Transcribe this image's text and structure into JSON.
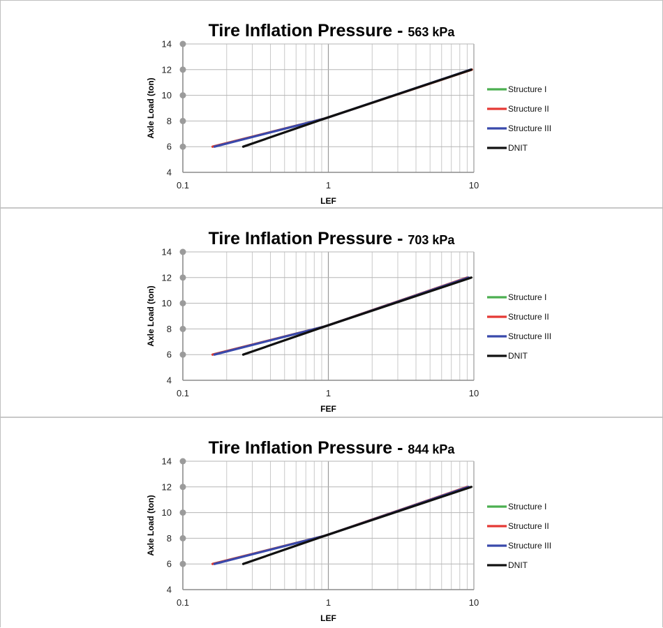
{
  "chart_data": [
    {
      "type": "line",
      "title_main": "Tire Inflation Pressure - ",
      "title_value": "563 kPa",
      "xlabel": "LEF",
      "ylabel": "Axle Load (ton)",
      "xscale": "log",
      "xlim": [
        0.1,
        10
      ],
      "ylim": [
        4,
        14
      ],
      "xticks": [
        "0.1",
        "1",
        "10"
      ],
      "yticks": [
        "4",
        "6",
        "8",
        "10",
        "12",
        "14"
      ],
      "grid": true,
      "legend_position": "right",
      "series": [
        {
          "name": "Structure I",
          "color": "#4caf50",
          "x": [
            0.16,
            0.95,
            9.7
          ],
          "y": [
            6,
            8.2,
            12
          ]
        },
        {
          "name": "Structure II",
          "color": "#e53935",
          "x": [
            0.16,
            0.95,
            9.7
          ],
          "y": [
            6,
            8.2,
            12
          ]
        },
        {
          "name": "Structure III",
          "color": "#3949ab",
          "x": [
            0.165,
            0.95,
            9.5
          ],
          "y": [
            6,
            8.2,
            12
          ]
        },
        {
          "name": "DNIT",
          "color": "#111111",
          "x": [
            0.26,
            0.95,
            9.6
          ],
          "y": [
            6,
            8.2,
            12
          ]
        }
      ]
    },
    {
      "type": "line",
      "title_main": "Tire Inflation Pressure - ",
      "title_value": "703 kPa",
      "xlabel": "FEF",
      "ylabel": "Axle Load (ton)",
      "xscale": "log",
      "xlim": [
        0.1,
        10
      ],
      "ylim": [
        4,
        14
      ],
      "xticks": [
        "0.1",
        "1",
        "10"
      ],
      "yticks": [
        "4",
        "6",
        "8",
        "10",
        "12",
        "14"
      ],
      "grid": true,
      "legend_position": "right",
      "series": [
        {
          "name": "Structure I",
          "color": "#4caf50",
          "x": [
            0.16,
            0.95,
            9.0
          ],
          "y": [
            6,
            8.2,
            12
          ]
        },
        {
          "name": "Structure II",
          "color": "#e53935",
          "x": [
            0.16,
            0.95,
            9.0
          ],
          "y": [
            6,
            8.2,
            12
          ]
        },
        {
          "name": "Structure III",
          "color": "#3949ab",
          "x": [
            0.165,
            0.95,
            9.2
          ],
          "y": [
            6,
            8.2,
            12
          ]
        },
        {
          "name": "DNIT",
          "color": "#111111",
          "x": [
            0.26,
            0.95,
            9.6
          ],
          "y": [
            6,
            8.2,
            12
          ]
        }
      ]
    },
    {
      "type": "line",
      "title_main": "Tire Inflation Pressure - ",
      "title_value": "844 kPa",
      "xlabel": "LEF",
      "ylabel": "Axle Load (ton)",
      "xscale": "log",
      "xlim": [
        0.1,
        10
      ],
      "ylim": [
        4,
        14
      ],
      "xticks": [
        "0.1",
        "1",
        "10"
      ],
      "yticks": [
        "4",
        "6",
        "8",
        "10",
        "12",
        "14"
      ],
      "grid": true,
      "legend_position": "right",
      "series": [
        {
          "name": "Structure I",
          "color": "#4caf50",
          "x": [
            0.16,
            0.95,
            9.0
          ],
          "y": [
            6,
            8.2,
            12
          ]
        },
        {
          "name": "Structure II",
          "color": "#e53935",
          "x": [
            0.16,
            0.95,
            9.0
          ],
          "y": [
            6,
            8.2,
            12
          ]
        },
        {
          "name": "Structure III",
          "color": "#3949ab",
          "x": [
            0.165,
            0.95,
            9.2
          ],
          "y": [
            6,
            8.2,
            12
          ]
        },
        {
          "name": "DNIT",
          "color": "#111111",
          "x": [
            0.26,
            0.95,
            9.6
          ],
          "y": [
            6,
            8.2,
            12
          ]
        }
      ]
    }
  ]
}
